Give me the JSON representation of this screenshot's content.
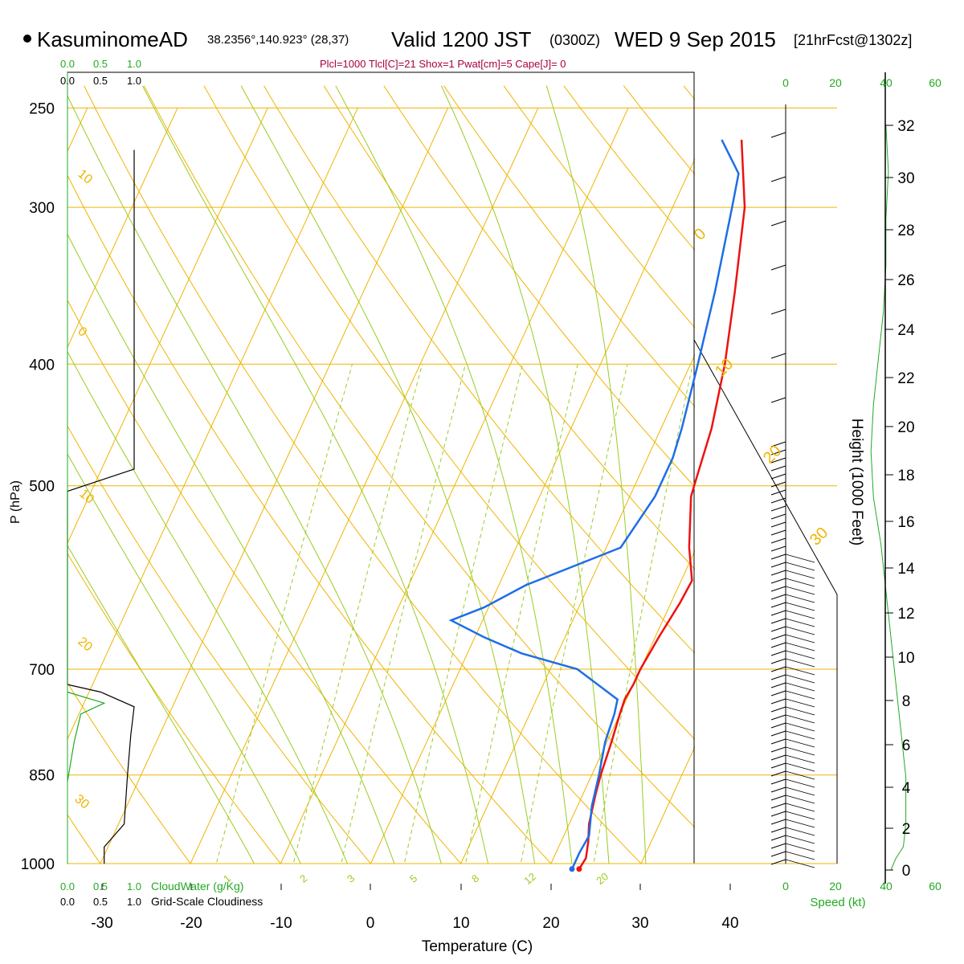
{
  "header": {
    "station": "KasuminomeAD",
    "coords": "38.2356°,140.923° (28,37)",
    "valid": "Valid 1200 JST",
    "utc": "(0300Z)",
    "date": "WED 9 Sep 2015",
    "fcst": "[21hrFcst@1302z]",
    "indices": "Plcl=1000 Tlcl[C]=21 Shox=1 Pwat[cm]=5 Cape[J]= 0"
  },
  "axes": {
    "xlabel": "Temperature (C)",
    "ylabel": "P (hPa)",
    "height_label": "Height (1000 Feet)",
    "speed_label": "Speed (kt)",
    "cloudwater_label": "CloudWater (g/Kg)",
    "cloudiness_label": "Grid-Scale Cloudiness"
  },
  "colors": {
    "temperature": "#ee1111",
    "dewpoint": "#1e6ee8",
    "isobar": "#f0b400",
    "isotherm": "#f0b400",
    "dry_adiabat": "#f0b400",
    "moist_adiabat": "#99cc22",
    "mixing_ratio": "#99cc22",
    "cloudwater": "#22aa22",
    "title_indices": "#aa0044"
  },
  "chart_data": {
    "type": "line",
    "title": "KasuminomeAD Valid 1200 JST (0300Z) WED 9 Sep 2015 [21hrFcst@1302z]",
    "xlabel": "Temperature (C)",
    "ylabel": "P (hPa)",
    "x_ticks": [
      "-30",
      "-20",
      "-10",
      "0",
      "10",
      "20",
      "30",
      "40"
    ],
    "y_ticks": [
      "250",
      "300",
      "400",
      "500",
      "700",
      "850",
      "1000"
    ],
    "pressure_levels": [
      250,
      300,
      400,
      500,
      700,
      850,
      1000
    ],
    "height_ticks": [
      "0",
      "2",
      "4",
      "6",
      "8",
      "10",
      "12",
      "14",
      "16",
      "18",
      "20",
      "22",
      "24",
      "26",
      "28",
      "30",
      "32"
    ],
    "speed_ticks": [
      "0",
      "20",
      "40",
      "60"
    ],
    "cloud_ticks": [
      "0.0",
      "0.5",
      "1.0"
    ],
    "dry_adiabat_labels": [
      "10",
      "0",
      "10",
      "20",
      "30"
    ],
    "isotherm_labels": [
      "0",
      "10",
      "20",
      "30"
    ],
    "mixing_ratio_labels": [
      "1",
      "2",
      "3",
      "5",
      "8",
      "12",
      "20"
    ],
    "series": [
      {
        "name": "Temperature",
        "points": [
          {
            "p": 1010,
            "t": 23.4
          },
          {
            "p": 990,
            "t": 23.6
          },
          {
            "p": 960,
            "t": 23.0
          },
          {
            "p": 930,
            "t": 22.2
          },
          {
            "p": 880,
            "t": 21.4
          },
          {
            "p": 850,
            "t": 21.0
          },
          {
            "p": 800,
            "t": 20.5
          },
          {
            "p": 760,
            "t": 20.0
          },
          {
            "p": 740,
            "t": 19.8
          },
          {
            "p": 720,
            "t": 20.0
          },
          {
            "p": 700,
            "t": 20.0
          },
          {
            "p": 660,
            "t": 20.4
          },
          {
            "p": 620,
            "t": 21.0
          },
          {
            "p": 595,
            "t": 21.2
          },
          {
            "p": 560,
            "t": 19.2
          },
          {
            "p": 510,
            "t": 16.8
          },
          {
            "p": 500,
            "t": 16.6
          },
          {
            "p": 450,
            "t": 15.6
          },
          {
            "p": 400,
            "t": 13.8
          },
          {
            "p": 350,
            "t": 11.2
          },
          {
            "p": 300,
            "t": 8.0
          },
          {
            "p": 265,
            "t": 4.2
          }
        ]
      },
      {
        "name": "Dewpoint",
        "points": [
          {
            "p": 1010,
            "t": 22.6
          },
          {
            "p": 980,
            "t": 22.6
          },
          {
            "p": 950,
            "t": 22.8
          },
          {
            "p": 900,
            "t": 21.6
          },
          {
            "p": 850,
            "t": 20.8
          },
          {
            "p": 800,
            "t": 19.8
          },
          {
            "p": 760,
            "t": 19.4
          },
          {
            "p": 740,
            "t": 19.0
          },
          {
            "p": 700,
            "t": 13.0
          },
          {
            "p": 680,
            "t": 6.0
          },
          {
            "p": 660,
            "t": 1.0
          },
          {
            "p": 640,
            "t": -3.5
          },
          {
            "p": 625,
            "t": -0.5
          },
          {
            "p": 600,
            "t": 3.0
          },
          {
            "p": 560,
            "t": 11.6
          },
          {
            "p": 510,
            "t": 12.8
          },
          {
            "p": 500,
            "t": 12.8
          },
          {
            "p": 475,
            "t": 12.8
          },
          {
            "p": 450,
            "t": 12.3
          },
          {
            "p": 400,
            "t": 10.8
          },
          {
            "p": 350,
            "t": 9.0
          },
          {
            "p": 300,
            "t": 6.6
          },
          {
            "p": 282,
            "t": 5.6
          },
          {
            "p": 265,
            "t": 2.0
          }
        ]
      }
    ],
    "wind_profile": [
      {
        "level": 0.0,
        "speed_kt": 10
      },
      {
        "level": 0.5,
        "speed_kt": 12
      },
      {
        "level": 1.0,
        "speed_kt": 15
      },
      {
        "level": 2.0,
        "speed_kt": 16
      },
      {
        "level": 4.0,
        "speed_kt": 16
      },
      {
        "level": 6.0,
        "speed_kt": 14
      },
      {
        "level": 8.0,
        "speed_kt": 12
      },
      {
        "level": 10.0,
        "speed_kt": 10
      },
      {
        "level": 12.0,
        "speed_kt": 8
      },
      {
        "level": 14.0,
        "speed_kt": 6
      },
      {
        "level": 16.0,
        "speed_kt": 3
      },
      {
        "level": 18.0,
        "speed_kt": 2
      },
      {
        "level": 20.0,
        "speed_kt": 3
      },
      {
        "level": 22.0,
        "speed_kt": 5
      },
      {
        "level": 24.0,
        "speed_kt": 7
      },
      {
        "level": 26.0,
        "speed_kt": 8
      },
      {
        "level": 28.0,
        "speed_kt": 8
      },
      {
        "level": 30.0,
        "speed_kt": 9
      },
      {
        "level": 32.0,
        "speed_kt": 8
      }
    ],
    "cloudiness_profile": [
      {
        "p": 1000,
        "v": 0.55
      },
      {
        "p": 970,
        "v": 0.55
      },
      {
        "p": 930,
        "v": 0.85
      },
      {
        "p": 850,
        "v": 0.9
      },
      {
        "p": 790,
        "v": 0.95
      },
      {
        "p": 750,
        "v": 1.0
      },
      {
        "p": 730,
        "v": 0.5
      },
      {
        "p": 720,
        "v": 0.0
      },
      {
        "p": 505,
        "v": 0.0
      },
      {
        "p": 485,
        "v": 1.0
      },
      {
        "p": 270,
        "v": 1.0
      }
    ],
    "cloudwater_profile": [
      {
        "p": 860,
        "v": 0.0
      },
      {
        "p": 800,
        "v": 0.1
      },
      {
        "p": 760,
        "v": 0.2
      },
      {
        "p": 745,
        "v": 0.55
      },
      {
        "p": 730,
        "v": 0.0
      }
    ],
    "grid": true
  }
}
